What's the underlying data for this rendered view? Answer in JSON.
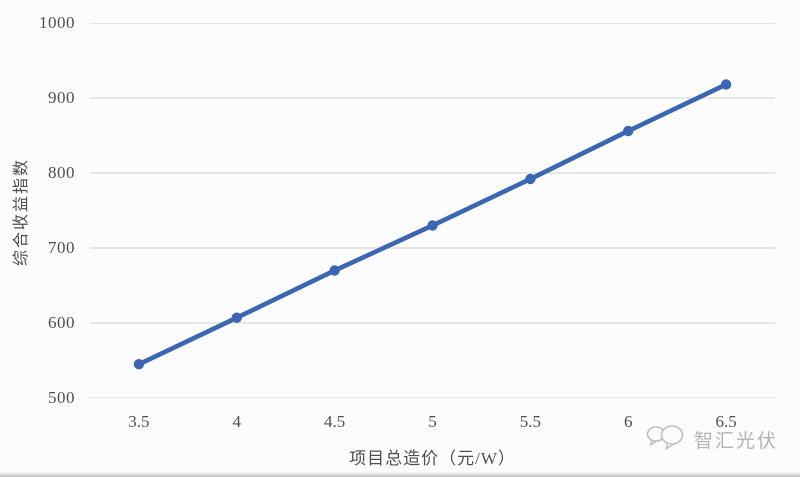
{
  "chart_data": {
    "type": "line",
    "x": [
      3.5,
      4,
      4.5,
      5,
      5.5,
      6,
      6.5
    ],
    "x_labels": [
      "3.5",
      "4",
      "4.5",
      "5",
      "5.5",
      "6",
      "6.5"
    ],
    "values": [
      545,
      607,
      670,
      730,
      792,
      856,
      918
    ],
    "title": "",
    "xlabel": "项目总造价（元/W）",
    "ylabel": "综合收益指数",
    "ylim": [
      500,
      1000
    ],
    "yticks": [
      1000,
      900,
      800,
      700,
      600,
      500
    ],
    "ytick_labels": [
      "1000",
      "900",
      "800",
      "700",
      "600",
      "500"
    ],
    "grid": "horizontal-only",
    "legend": "none",
    "line_color": "#3d66b0",
    "gridline_color": "#d9d9d9",
    "text_color": "#4f4f4f"
  },
  "watermark": {
    "text": "智汇光伏",
    "icon": "speech-bubbles-icon",
    "color": "#b3b3b3"
  }
}
